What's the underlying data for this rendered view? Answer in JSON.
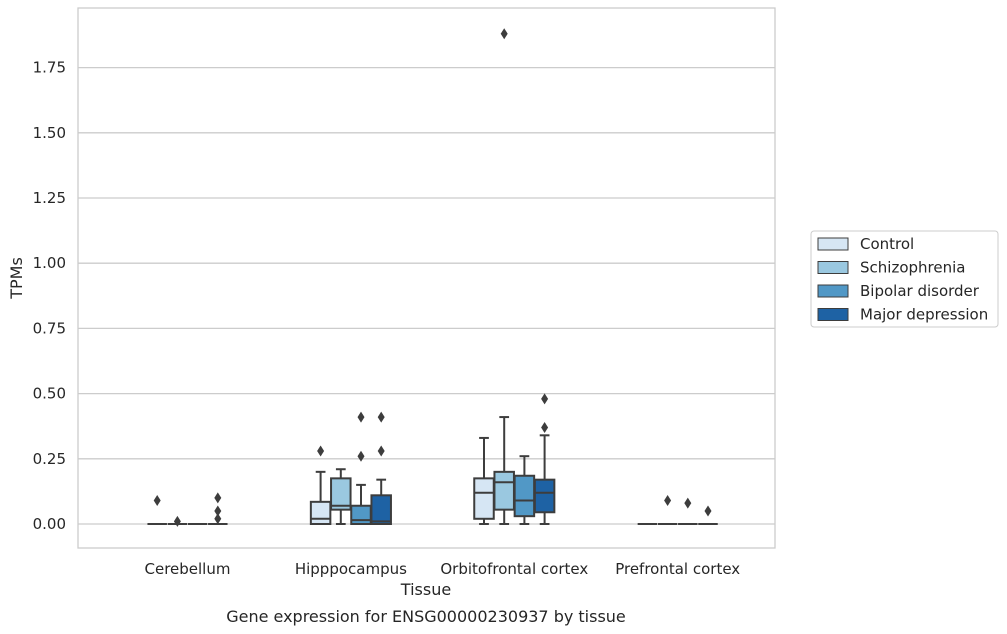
{
  "chart_data": {
    "type": "box",
    "title": "",
    "caption": "Gene expression for ENSG00000230937 by tissue",
    "xlabel": "Tissue",
    "ylabel": "TPMs",
    "ylim": [
      -0.09,
      1.97
    ],
    "yticks": [
      0.0,
      0.25,
      0.5,
      0.75,
      1.0,
      1.25,
      1.5,
      1.75
    ],
    "ytick_labels": [
      "0.00",
      "0.25",
      "0.50",
      "0.75",
      "1.00",
      "1.25",
      "1.50",
      "1.75"
    ],
    "grid": true,
    "legend_position": "right",
    "categories": [
      "Cerebellum",
      "Hipppocampus",
      "Orbitofrontal cortex",
      "Prefrontal cortex"
    ],
    "series": [
      {
        "name": "Control",
        "color": "#d6e6f4",
        "boxes": [
          {
            "q1": 0,
            "median": 0,
            "q3": 0,
            "whislo": 0,
            "whishi": 0,
            "fliers": [
              0.09
            ]
          },
          {
            "q1": 0.0,
            "median": 0.02,
            "q3": 0.085,
            "whislo": 0.0,
            "whishi": 0.2,
            "fliers": [
              0.28
            ]
          },
          {
            "q1": 0.02,
            "median": 0.12,
            "q3": 0.175,
            "whislo": 0.0,
            "whishi": 0.33,
            "fliers": []
          },
          {
            "q1": 0,
            "median": 0,
            "q3": 0,
            "whislo": 0,
            "whishi": 0,
            "fliers": []
          }
        ]
      },
      {
        "name": "Schizophrenia",
        "color": "#9ac8e0",
        "boxes": [
          {
            "q1": 0,
            "median": 0,
            "q3": 0,
            "whislo": 0,
            "whishi": 0,
            "fliers": [
              0.01
            ]
          },
          {
            "q1": 0.055,
            "median": 0.07,
            "q3": 0.175,
            "whislo": 0.0,
            "whishi": 0.21,
            "fliers": []
          },
          {
            "q1": 0.055,
            "median": 0.16,
            "q3": 0.2,
            "whislo": 0.0,
            "whishi": 0.41,
            "fliers": [
              1.88
            ]
          },
          {
            "q1": 0,
            "median": 0,
            "q3": 0,
            "whislo": 0,
            "whishi": 0,
            "fliers": [
              0.09
            ]
          }
        ]
      },
      {
        "name": "Bipolar disorder",
        "color": "#5198c6",
        "boxes": [
          {
            "q1": 0,
            "median": 0,
            "q3": 0,
            "whislo": 0,
            "whishi": 0,
            "fliers": []
          },
          {
            "q1": 0.0,
            "median": 0.015,
            "q3": 0.07,
            "whislo": 0.0,
            "whishi": 0.15,
            "fliers": [
              0.26,
              0.41
            ]
          },
          {
            "q1": 0.03,
            "median": 0.09,
            "q3": 0.185,
            "whislo": 0.0,
            "whishi": 0.26,
            "fliers": []
          },
          {
            "q1": 0,
            "median": 0,
            "q3": 0,
            "whislo": 0,
            "whishi": 0,
            "fliers": [
              0.08
            ]
          }
        ]
      },
      {
        "name": "Major depression",
        "color": "#1e62a4",
        "boxes": [
          {
            "q1": 0,
            "median": 0,
            "q3": 0,
            "whislo": 0,
            "whishi": 0,
            "fliers": [
              0.02,
              0.05,
              0.1
            ]
          },
          {
            "q1": 0.0,
            "median": 0.01,
            "q3": 0.11,
            "whislo": 0.0,
            "whishi": 0.17,
            "fliers": [
              0.28,
              0.41
            ]
          },
          {
            "q1": 0.045,
            "median": 0.12,
            "q3": 0.17,
            "whislo": 0.0,
            "whishi": 0.34,
            "fliers": [
              0.37,
              0.48
            ]
          },
          {
            "q1": 0,
            "median": 0,
            "q3": 0,
            "whislo": 0,
            "whishi": 0,
            "fliers": [
              0.05
            ]
          }
        ]
      }
    ]
  }
}
